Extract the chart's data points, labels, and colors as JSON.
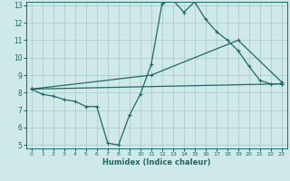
{
  "xlabel": "Humidex (Indice chaleur)",
  "ylabel": "",
  "xlim": [
    -0.5,
    23.5
  ],
  "ylim": [
    4.8,
    13.2
  ],
  "xticks": [
    0,
    1,
    2,
    3,
    4,
    5,
    6,
    7,
    8,
    9,
    10,
    11,
    12,
    13,
    14,
    15,
    16,
    17,
    18,
    19,
    20,
    21,
    22,
    23
  ],
  "yticks": [
    5,
    6,
    7,
    8,
    9,
    10,
    11,
    12,
    13
  ],
  "background_color": "#cfe8e8",
  "grid_color": "#b0cccc",
  "line_color": "#1a6b6b",
  "line1_x": [
    0,
    1,
    2,
    3,
    4,
    5,
    6,
    7,
    8,
    9,
    10,
    11,
    12,
    13,
    14,
    15,
    16,
    17,
    18,
    19,
    20,
    21,
    22,
    23
  ],
  "line1_y": [
    8.2,
    7.9,
    7.8,
    7.6,
    7.5,
    7.2,
    7.2,
    5.1,
    5.0,
    6.7,
    7.9,
    9.6,
    13.1,
    13.3,
    12.6,
    13.2,
    12.2,
    11.5,
    11.0,
    10.4,
    9.5,
    8.7,
    8.5,
    8.5
  ],
  "line2_x": [
    0,
    23
  ],
  "line2_y": [
    8.2,
    8.5
  ],
  "line3_x": [
    0,
    11,
    19,
    23
  ],
  "line3_y": [
    8.2,
    9.0,
    11.0,
    8.6
  ]
}
